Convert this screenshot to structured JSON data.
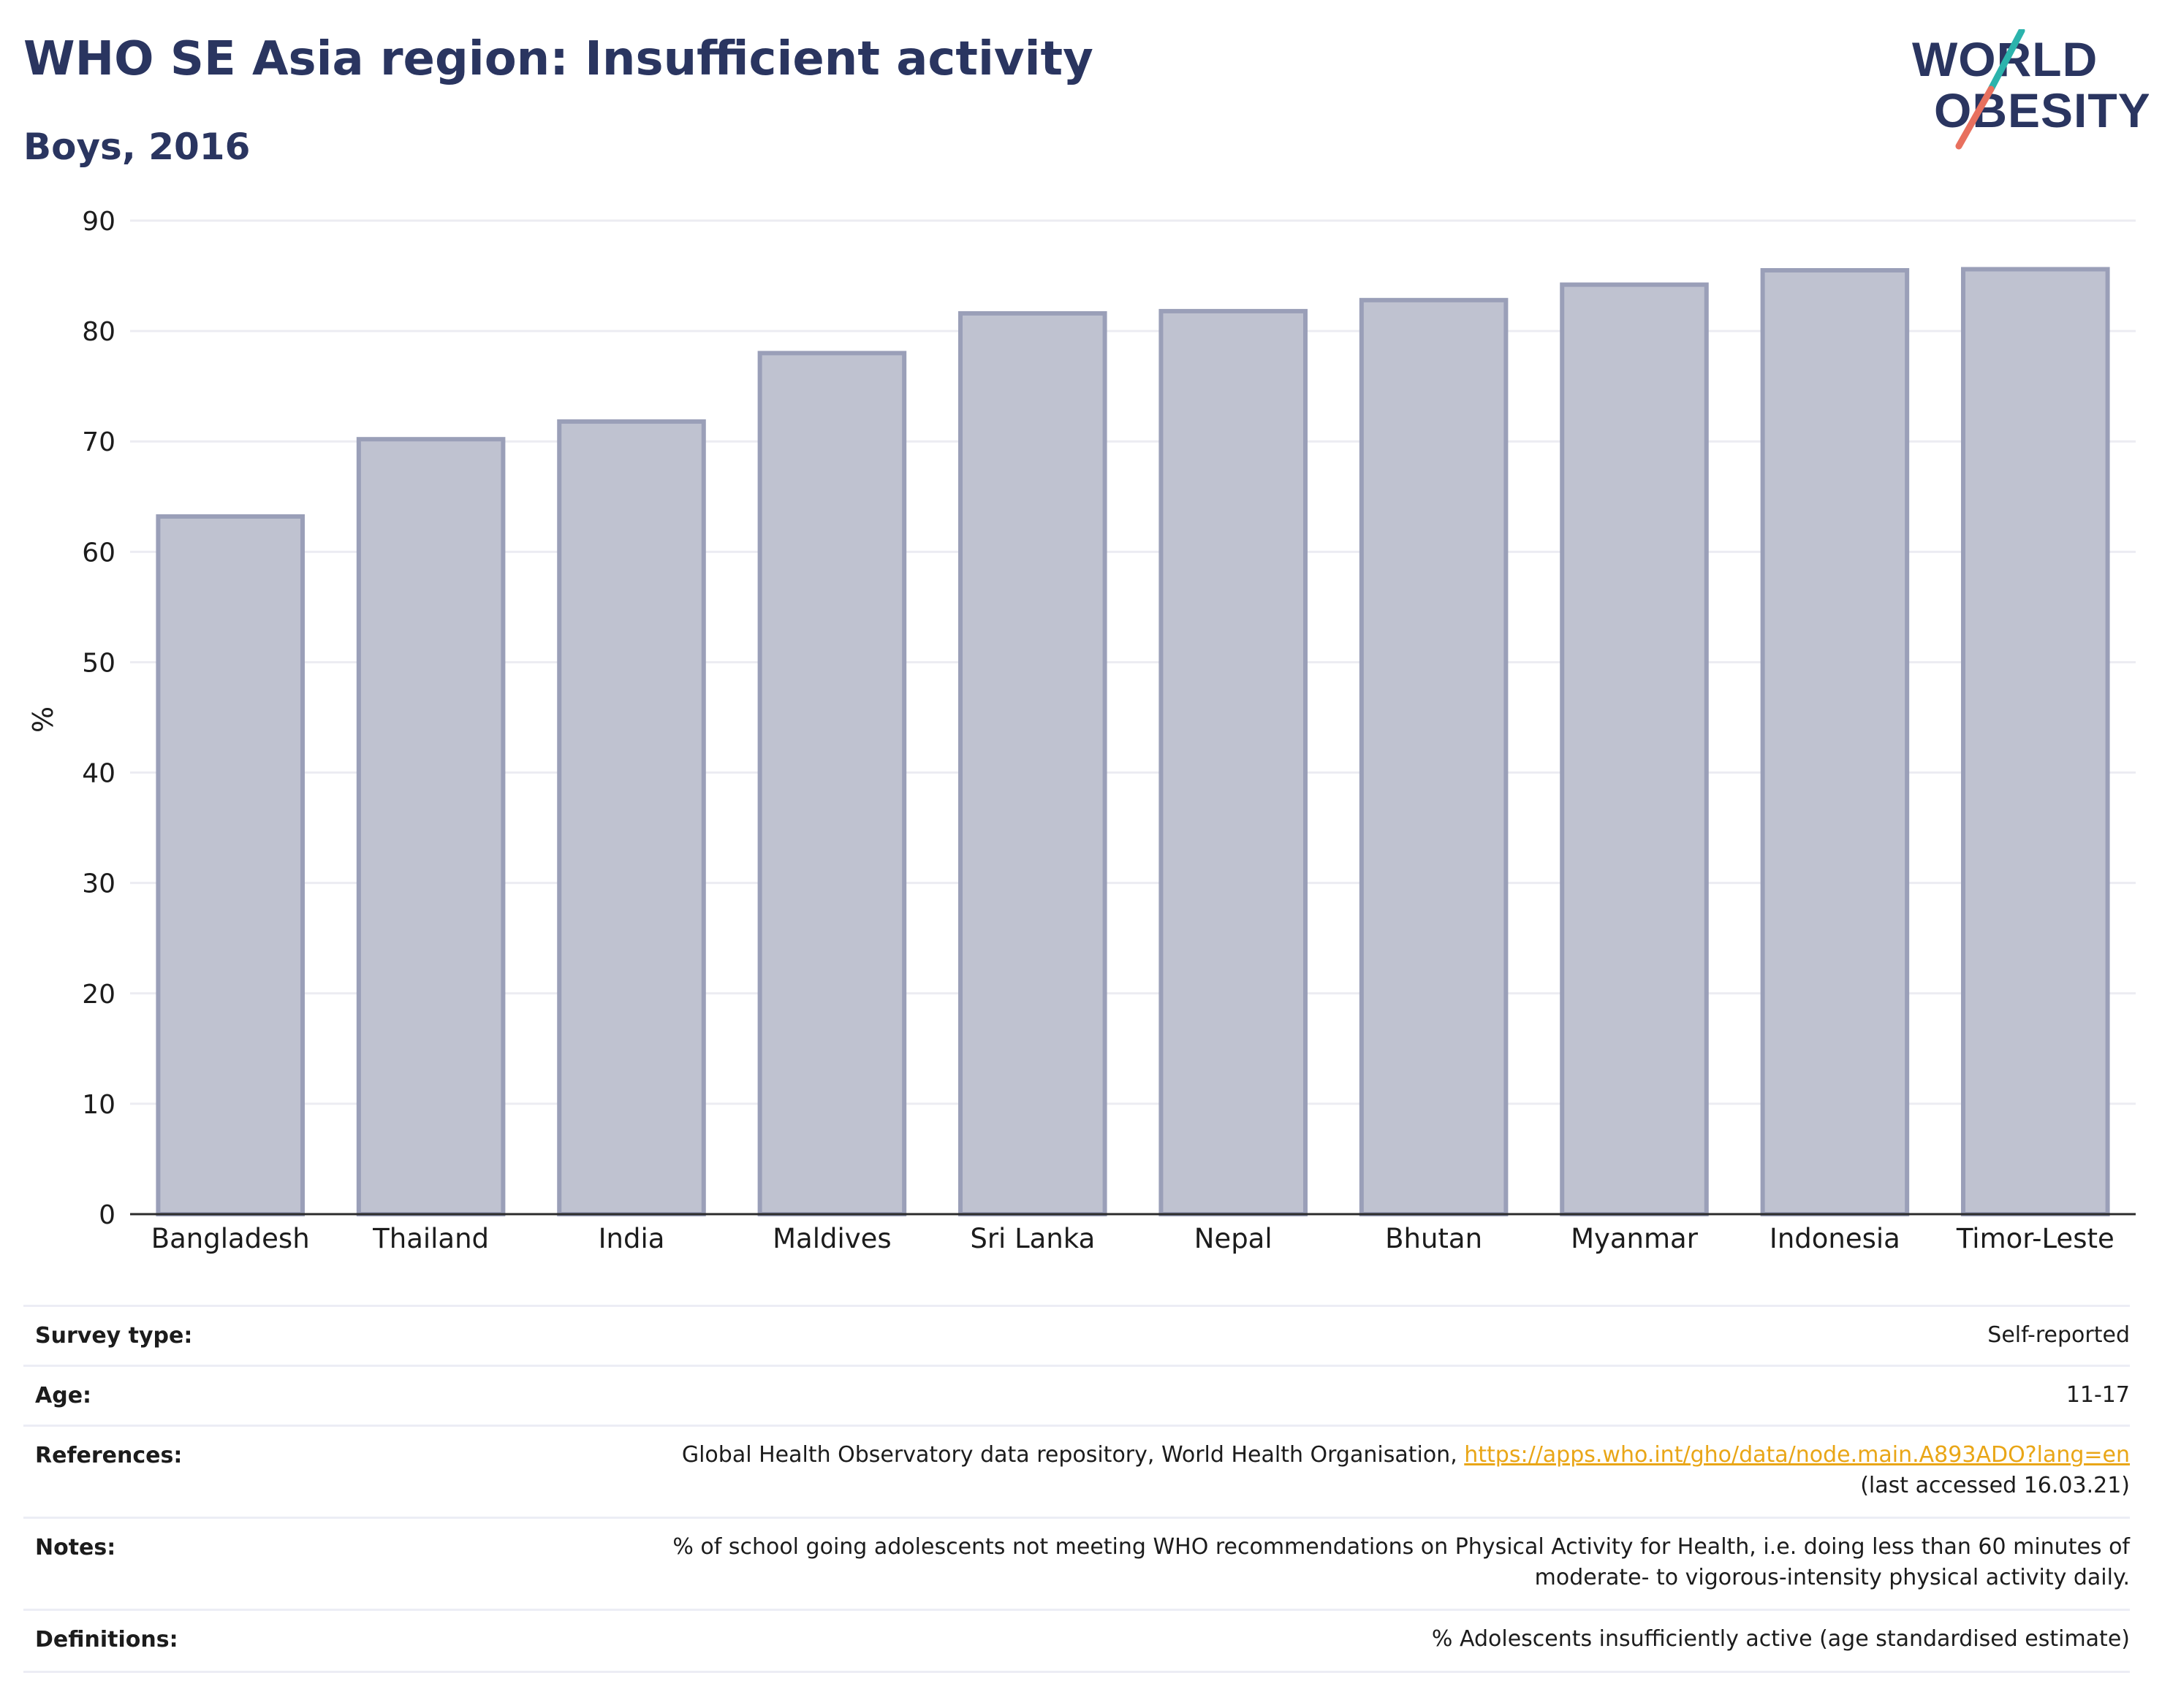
{
  "header": {
    "title": "WHO SE Asia region: Insufficient activity",
    "subtitle": "Boys, 2016"
  },
  "logo": {
    "line1": "WORLD",
    "line2": "OBESITY"
  },
  "chart_data": {
    "type": "bar",
    "categories": [
      "Bangladesh",
      "Thailand",
      "India",
      "Maldives",
      "Sri Lanka",
      "Nepal",
      "Bhutan",
      "Myanmar",
      "Indonesia",
      "Timor-Leste"
    ],
    "values": [
      63.2,
      70.2,
      71.8,
      78.0,
      81.6,
      81.8,
      82.8,
      84.2,
      85.5,
      85.6
    ],
    "ylabel": "%",
    "ylim": [
      0,
      90
    ],
    "yticks": [
      0,
      10,
      20,
      30,
      40,
      50,
      60,
      70,
      80,
      90
    ],
    "grid": true,
    "bar_fill": "#bfc2d0",
    "bar_stroke": "#9a9fb8"
  },
  "info_table": {
    "survey_type_label": "Survey type:",
    "survey_type_value": "Self-reported",
    "age_label": "Age:",
    "age_value": "11-17",
    "references_label": "References:",
    "references_text": "Global Health Observatory data repository, World Health Organisation, ",
    "references_link": "https://apps.who.int/gho/data/node.main.A893ADO?lang=en",
    "references_accessed": "(last accessed 16.03.21)",
    "notes_label": "Notes:",
    "notes_line1": "% of school going adolescents not meeting WHO recommendations on Physical Activity for Health, i.e. doing less than 60 minutes of",
    "notes_line2": "moderate- to vigorous-intensity physical activity daily.",
    "definitions_label": "Definitions:",
    "definitions_value": "% Adolescents insufficiently active (age standardised estimate)"
  },
  "colors": {
    "title": "#2a3560",
    "link": "#e9a617",
    "logo_teal": "#2bb3ac",
    "logo_coral": "#e8705e"
  }
}
